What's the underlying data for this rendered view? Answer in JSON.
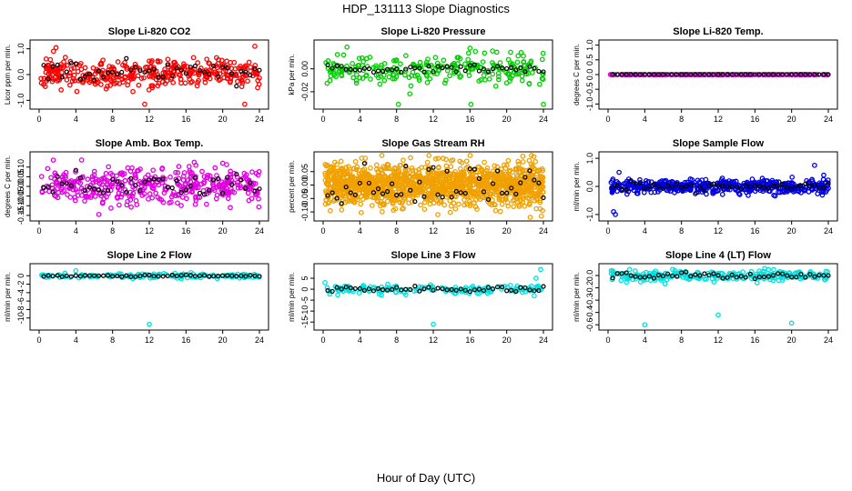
{
  "page": {
    "title": "HDP_131113  Slope Diagnostics",
    "xlabel": "Hour of Day (UTC)"
  },
  "chart_data": [
    {
      "type": "scatter",
      "title": "Slope Li-820 CO2",
      "ylabel": "Licor ppm per min.",
      "xlim": [
        0,
        24
      ],
      "xticks": [
        0,
        4,
        8,
        12,
        16,
        20,
        24
      ],
      "ylim": [
        -1.2,
        1.2
      ],
      "yticks": [
        -1.0,
        0.0,
        1.0
      ],
      "ytick_labels": [
        "-1.0",
        "0.0",
        "1.0"
      ],
      "color": "#ff0000",
      "n_points": 380,
      "spread": 0.28,
      "base": 0.05,
      "seed": 11,
      "outliers": [
        [
          11.5,
          -1.15
        ],
        [
          22.4,
          -1.15
        ],
        [
          23.5,
          1.1
        ]
      ],
      "black_spread": 0.22,
      "black_base": 0.05
    },
    {
      "type": "scatter",
      "title": "Slope Li-820 Pressure",
      "ylabel": "kPa per min.",
      "xlim": [
        0,
        24
      ],
      "xticks": [
        0,
        4,
        8,
        12,
        16,
        20,
        24
      ],
      "ylim": [
        -0.032,
        0.022
      ],
      "yticks": [
        -0.02,
        0.0
      ],
      "ytick_labels": [
        "-0.02",
        "0.00"
      ],
      "color": "#00d000",
      "n_points": 260,
      "spread": 0.006,
      "base": 0.0,
      "seed": 23,
      "outliers": [
        [
          8.2,
          -0.031
        ],
        [
          16.1,
          -0.031
        ],
        [
          24.0,
          -0.031
        ],
        [
          16.0,
          0.018
        ],
        [
          2.6,
          0.019
        ]
      ],
      "black_spread": 0.002,
      "black_base": 0.0
    },
    {
      "type": "scatter",
      "title": "Slope Li-820 Temp.",
      "ylabel": "degrees C per min.",
      "xlim": [
        0,
        24
      ],
      "xticks": [
        0,
        4,
        8,
        12,
        16,
        20,
        24
      ],
      "ylim": [
        -1.05,
        1.05
      ],
      "yticks": [
        -1.0,
        -0.5,
        0.0,
        0.5,
        1.0
      ],
      "ytick_labels": [
        "-1.0",
        "-0.5",
        "0.0",
        "0.5",
        "1.0"
      ],
      "color": "#e000e0",
      "n_points": 220,
      "spread": 0.0,
      "base": 0.0,
      "seed": 5,
      "outliers": [],
      "black_spread": 0.0,
      "black_base": 0.0
    },
    {
      "type": "scatter",
      "title": "Slope Amb. Box Temp.",
      "ylabel": "degrees C per min.",
      "xlim": [
        0,
        24
      ],
      "xticks": [
        0,
        4,
        8,
        12,
        16,
        20,
        24
      ],
      "ylim": [
        -0.16,
        0.16
      ],
      "yticks": [
        -0.15,
        -0.1,
        -0.05,
        0.0,
        0.05,
        0.1
      ],
      "ytick_labels": [
        "-0.15",
        "-0.10",
        "-0.05",
        "0.00",
        "0.05",
        "0.10"
      ],
      "color": "#e000e0",
      "n_points": 420,
      "spread": 0.045,
      "base": 0.0,
      "seed": 37,
      "outliers": [
        [
          6.5,
          -0.145
        ],
        [
          20.0,
          0.12
        ]
      ],
      "black_spread": 0.035,
      "black_base": 0.0
    },
    {
      "type": "scatter",
      "title": "Slope Gas Stream RH",
      "ylabel": "percent per min.",
      "xlim": [
        0,
        24
      ],
      "xticks": [
        0,
        4,
        8,
        12,
        16,
        20,
        24
      ],
      "ylim": [
        -0.12,
        0.11
      ],
      "yticks": [
        -0.1,
        -0.05,
        0.0,
        0.05
      ],
      "ytick_labels": [
        "-0.10",
        "-0.05",
        "0.00",
        "0.05"
      ],
      "color": "#f0a000",
      "n_points": 1400,
      "spread": 0.038,
      "base": 0.0,
      "seed": 41,
      "outliers": [
        [
          4.2,
          0.1
        ],
        [
          12.5,
          -0.11
        ]
      ],
      "black_spread": 0.035,
      "black_base": 0.0
    },
    {
      "type": "scatter",
      "title": "Slope Sample Flow",
      "ylabel": "ml/min per min.",
      "xlim": [
        0,
        24
      ],
      "xticks": [
        0,
        4,
        8,
        12,
        16,
        20,
        24
      ],
      "ylim": [
        -1.1,
        1.1
      ],
      "yticks": [
        -1.0,
        0.0,
        1.0
      ],
      "ytick_labels": [
        "-1.0",
        "0.0",
        "1.0"
      ],
      "color": "#0000e0",
      "n_points": 520,
      "spread": 0.12,
      "base": 0.0,
      "seed": 53,
      "outliers": [
        [
          0.6,
          -0.9
        ],
        [
          0.8,
          -1.0
        ],
        [
          22.5,
          0.75
        ],
        [
          23.5,
          0.4
        ],
        [
          1.2,
          0.5
        ]
      ],
      "black_spread": 0.08,
      "black_base": 0.0
    },
    {
      "type": "scatter",
      "title": "Slope Line 2 Flow",
      "ylabel": "ml/min per min.",
      "xlim": [
        0,
        24
      ],
      "xticks": [
        0,
        4,
        8,
        12,
        16,
        20,
        24
      ],
      "ylim": [
        -12,
        2
      ],
      "yticks": [
        -10,
        -8,
        -6,
        -4,
        -2,
        0
      ],
      "ytick_labels": [
        "-10",
        "-8",
        "-6",
        "-4",
        "-2",
        "0"
      ],
      "color": "#00e0e0",
      "n_points": 160,
      "spread": 0.3,
      "base": 0.0,
      "seed": 61,
      "outliers": [
        [
          12.0,
          -11.5
        ],
        [
          4.0,
          1.2
        ]
      ],
      "black_spread": 0.1,
      "black_base": 0.0
    },
    {
      "type": "scatter",
      "title": "Slope Line 3 Flow",
      "ylabel": "ml/min per min.",
      "xlim": [
        0,
        24
      ],
      "xticks": [
        0,
        4,
        8,
        12,
        16,
        20,
        24
      ],
      "ylim": [
        -17,
        10
      ],
      "yticks": [
        -15,
        -10,
        -5,
        0,
        5
      ],
      "ytick_labels": [
        "-15",
        "-10",
        "-5",
        "0",
        "5"
      ],
      "color": "#00e0e0",
      "n_points": 160,
      "spread": 1.0,
      "base": 0.0,
      "seed": 71,
      "outliers": [
        [
          12.0,
          -16
        ],
        [
          23.2,
          5
        ],
        [
          23.7,
          9
        ],
        [
          0.2,
          3
        ],
        [
          23.0,
          -3
        ]
      ],
      "black_spread": 0.6,
      "black_base": 0.0
    },
    {
      "type": "scatter",
      "title": "Slope Line 4 (LT) Flow",
      "ylabel": "ml/min per min.",
      "xlim": [
        0,
        24
      ],
      "xticks": [
        0,
        4,
        8,
        12,
        16,
        20,
        24
      ],
      "ylim": [
        -0.62,
        0.1
      ],
      "yticks": [
        -0.6,
        -0.45,
        -0.3,
        -0.15,
        0.0
      ],
      "ytick_labels": [
        "-0.6",
        "-0.4",
        "-0.3",
        "-0.2",
        "0.0"
      ],
      "color": "#00e0e0",
      "n_points": 260,
      "spread": 0.03,
      "base": 0.0,
      "seed": 83,
      "outliers": [
        [
          4.0,
          -0.6
        ],
        [
          12.0,
          -0.48
        ],
        [
          20.0,
          -0.58
        ]
      ],
      "black_spread": 0.02,
      "black_base": 0.0
    }
  ]
}
